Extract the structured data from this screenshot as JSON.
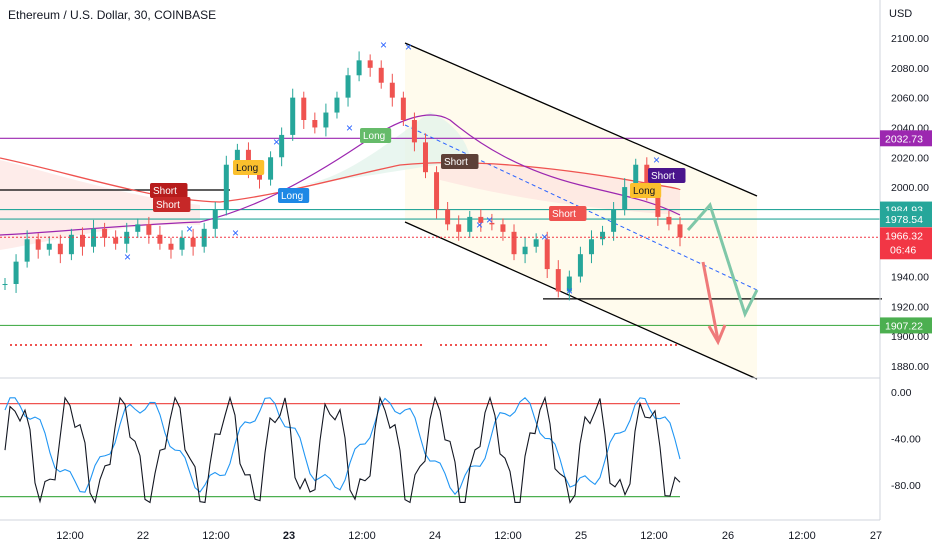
{
  "header": {
    "title": "Ethereum / U.S. Dollar, 30, COINBASE",
    "currency": "USD"
  },
  "price_pane": {
    "y_ticks": [
      "2100.00",
      "2080.00",
      "2060.00",
      "2040.00",
      "2020.00",
      "2000.00",
      "1980.00",
      "1960.00",
      "1940.00",
      "1920.00",
      "1900.00",
      "1880.00"
    ],
    "levels": [
      {
        "label": "2032.73",
        "value": 2032.73,
        "color": "#9c27b0"
      },
      {
        "label": "1984.93",
        "value": 1984.93,
        "color": "#26a69a"
      },
      {
        "label": "1978.54",
        "value": 1978.54,
        "color": "#26a69a"
      },
      {
        "label": "1907.22",
        "value": 1907.22,
        "color": "#4caf50"
      }
    ],
    "current_price": {
      "label": "1966.32",
      "countdown": "06:46",
      "value": 1966.32,
      "color": "#f23645"
    },
    "support_line": 1925,
    "signals": [
      {
        "text": "Short",
        "color": "#b71c1c"
      },
      {
        "text": "Short",
        "color": "#c62828"
      },
      {
        "text": "Long",
        "color": "#fbc02d"
      },
      {
        "text": "Long",
        "color": "#1e88e5"
      },
      {
        "text": "Long",
        "color": "#66bb6a"
      },
      {
        "text": "Short",
        "color": "#5d4037"
      },
      {
        "text": "Short",
        "color": "#ef5350"
      },
      {
        "text": "Long",
        "color": "#fbc02d"
      },
      {
        "text": "Short",
        "color": "#4a148c"
      }
    ]
  },
  "oscillator": {
    "y_ticks": [
      "0.00",
      "-40.00",
      "-80.00"
    ],
    "upper_band": -10,
    "lower_band": -90
  },
  "x_ticks": [
    "12:00",
    "22",
    "12:00",
    "23",
    "12:00",
    "24",
    "12:00",
    "25",
    "12:00",
    "26",
    "12:00",
    "27"
  ],
  "colors": {
    "up": "#26a69a",
    "down": "#ef5350",
    "channel": "#000000",
    "ma_red": "#ef5350",
    "ma_purple": "#9c27b0",
    "arrow_green": "#7fc7a8",
    "arrow_red": "#ef7a7a"
  },
  "chart_data": {
    "type": "candlestick",
    "title": "Ethereum / U.S. Dollar, 30, COINBASE",
    "ylabel": "USD",
    "ylim": [
      1870,
      2105
    ],
    "x_ticks": [
      "12:00",
      "22",
      "12:00",
      "23",
      "12:00",
      "24",
      "12:00",
      "25",
      "12:00",
      "26",
      "12:00",
      "27"
    ],
    "close_series_approx": [
      1935,
      1950,
      1965,
      1958,
      1962,
      1955,
      1968,
      1960,
      1972,
      1966,
      1962,
      1970,
      1975,
      1968,
      1962,
      1958,
      1966,
      1960,
      1972,
      1985,
      2015,
      2025,
      2010,
      2005,
      2020,
      2035,
      2060,
      2045,
      2040,
      2050,
      2060,
      2075,
      2085,
      2080,
      2070,
      2060,
      2045,
      2030,
      2010,
      1985,
      1975,
      1970,
      1980,
      1976,
      1975,
      1970,
      1955,
      1960,
      1965,
      1945,
      1930,
      1940,
      1955,
      1965,
      1970,
      1985,
      2000,
      2015,
      1995,
      1980,
      1975,
      1966.32
    ],
    "horizontal_levels": [
      2032.73,
      1984.93,
      1978.54,
      1907.22
    ],
    "last_price": 1966.32,
    "oscillator": {
      "ylim": [
        -100,
        5
      ],
      "ticks": [
        0,
        -40,
        -80
      ],
      "bands": [
        -10,
        -90
      ]
    }
  }
}
